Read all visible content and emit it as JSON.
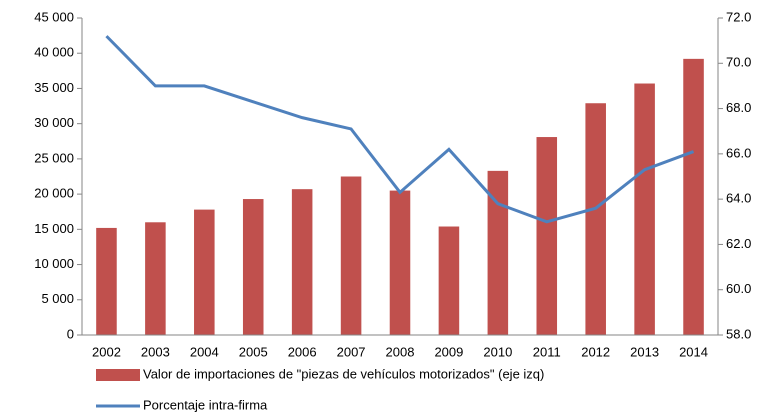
{
  "chart_data": {
    "type": "bar_line",
    "categories": [
      "2002",
      "2003",
      "2004",
      "2005",
      "2006",
      "2007",
      "2008",
      "2009",
      "2010",
      "2011",
      "2012",
      "2013",
      "2014"
    ],
    "series": [
      {
        "name": "Valor de importaciones de \"piezas de vehículos motorizados\" (eje izq)",
        "color": "#c0504d",
        "type": "bar",
        "values": [
          15200,
          16000,
          17800,
          19300,
          20700,
          22500,
          20500,
          15400,
          23300,
          28100,
          32900,
          35700,
          39200
        ]
      },
      {
        "name": "Porcentaje intra-firma",
        "color": "#4f81bd",
        "type": "line",
        "axis": "y2",
        "values": [
          71.2,
          69.0,
          69.0,
          68.3,
          67.6,
          67.1,
          64.3,
          66.2,
          63.8,
          63.0,
          63.6,
          65.3,
          66.1
        ]
      }
    ],
    "ylim": [
      0,
      45000
    ],
    "yticks": [
      0,
      {
        "value": 5000,
        "label": "5 000"
      },
      {
        "value": 10000,
        "label": "10 000"
      },
      {
        "value": 15000,
        "label": "15 000"
      },
      {
        "value": 20000,
        "label": "20 000"
      },
      {
        "value": 25000,
        "label": "25 000"
      },
      {
        "value": 30000,
        "label": "30 000"
      },
      {
        "value": 35000,
        "label": "35 000"
      },
      {
        "value": 40000,
        "label": "40 000"
      },
      {
        "value": 45000,
        "label": "45 000"
      }
    ],
    "y2lim": [
      58,
      72
    ],
    "y2ticks": [
      {
        "value": 58,
        "label": "58.0"
      },
      {
        "value": 60,
        "label": "60.0"
      },
      {
        "value": 62,
        "label": "62.0"
      },
      {
        "value": 64,
        "label": "64.0"
      },
      {
        "value": 66,
        "label": "66.0"
      },
      {
        "value": 68,
        "label": "68.0"
      },
      {
        "value": 70,
        "label": "70.0"
      },
      {
        "value": 72,
        "label": "72.0"
      }
    ],
    "legend": "bottom",
    "grid": false
  }
}
